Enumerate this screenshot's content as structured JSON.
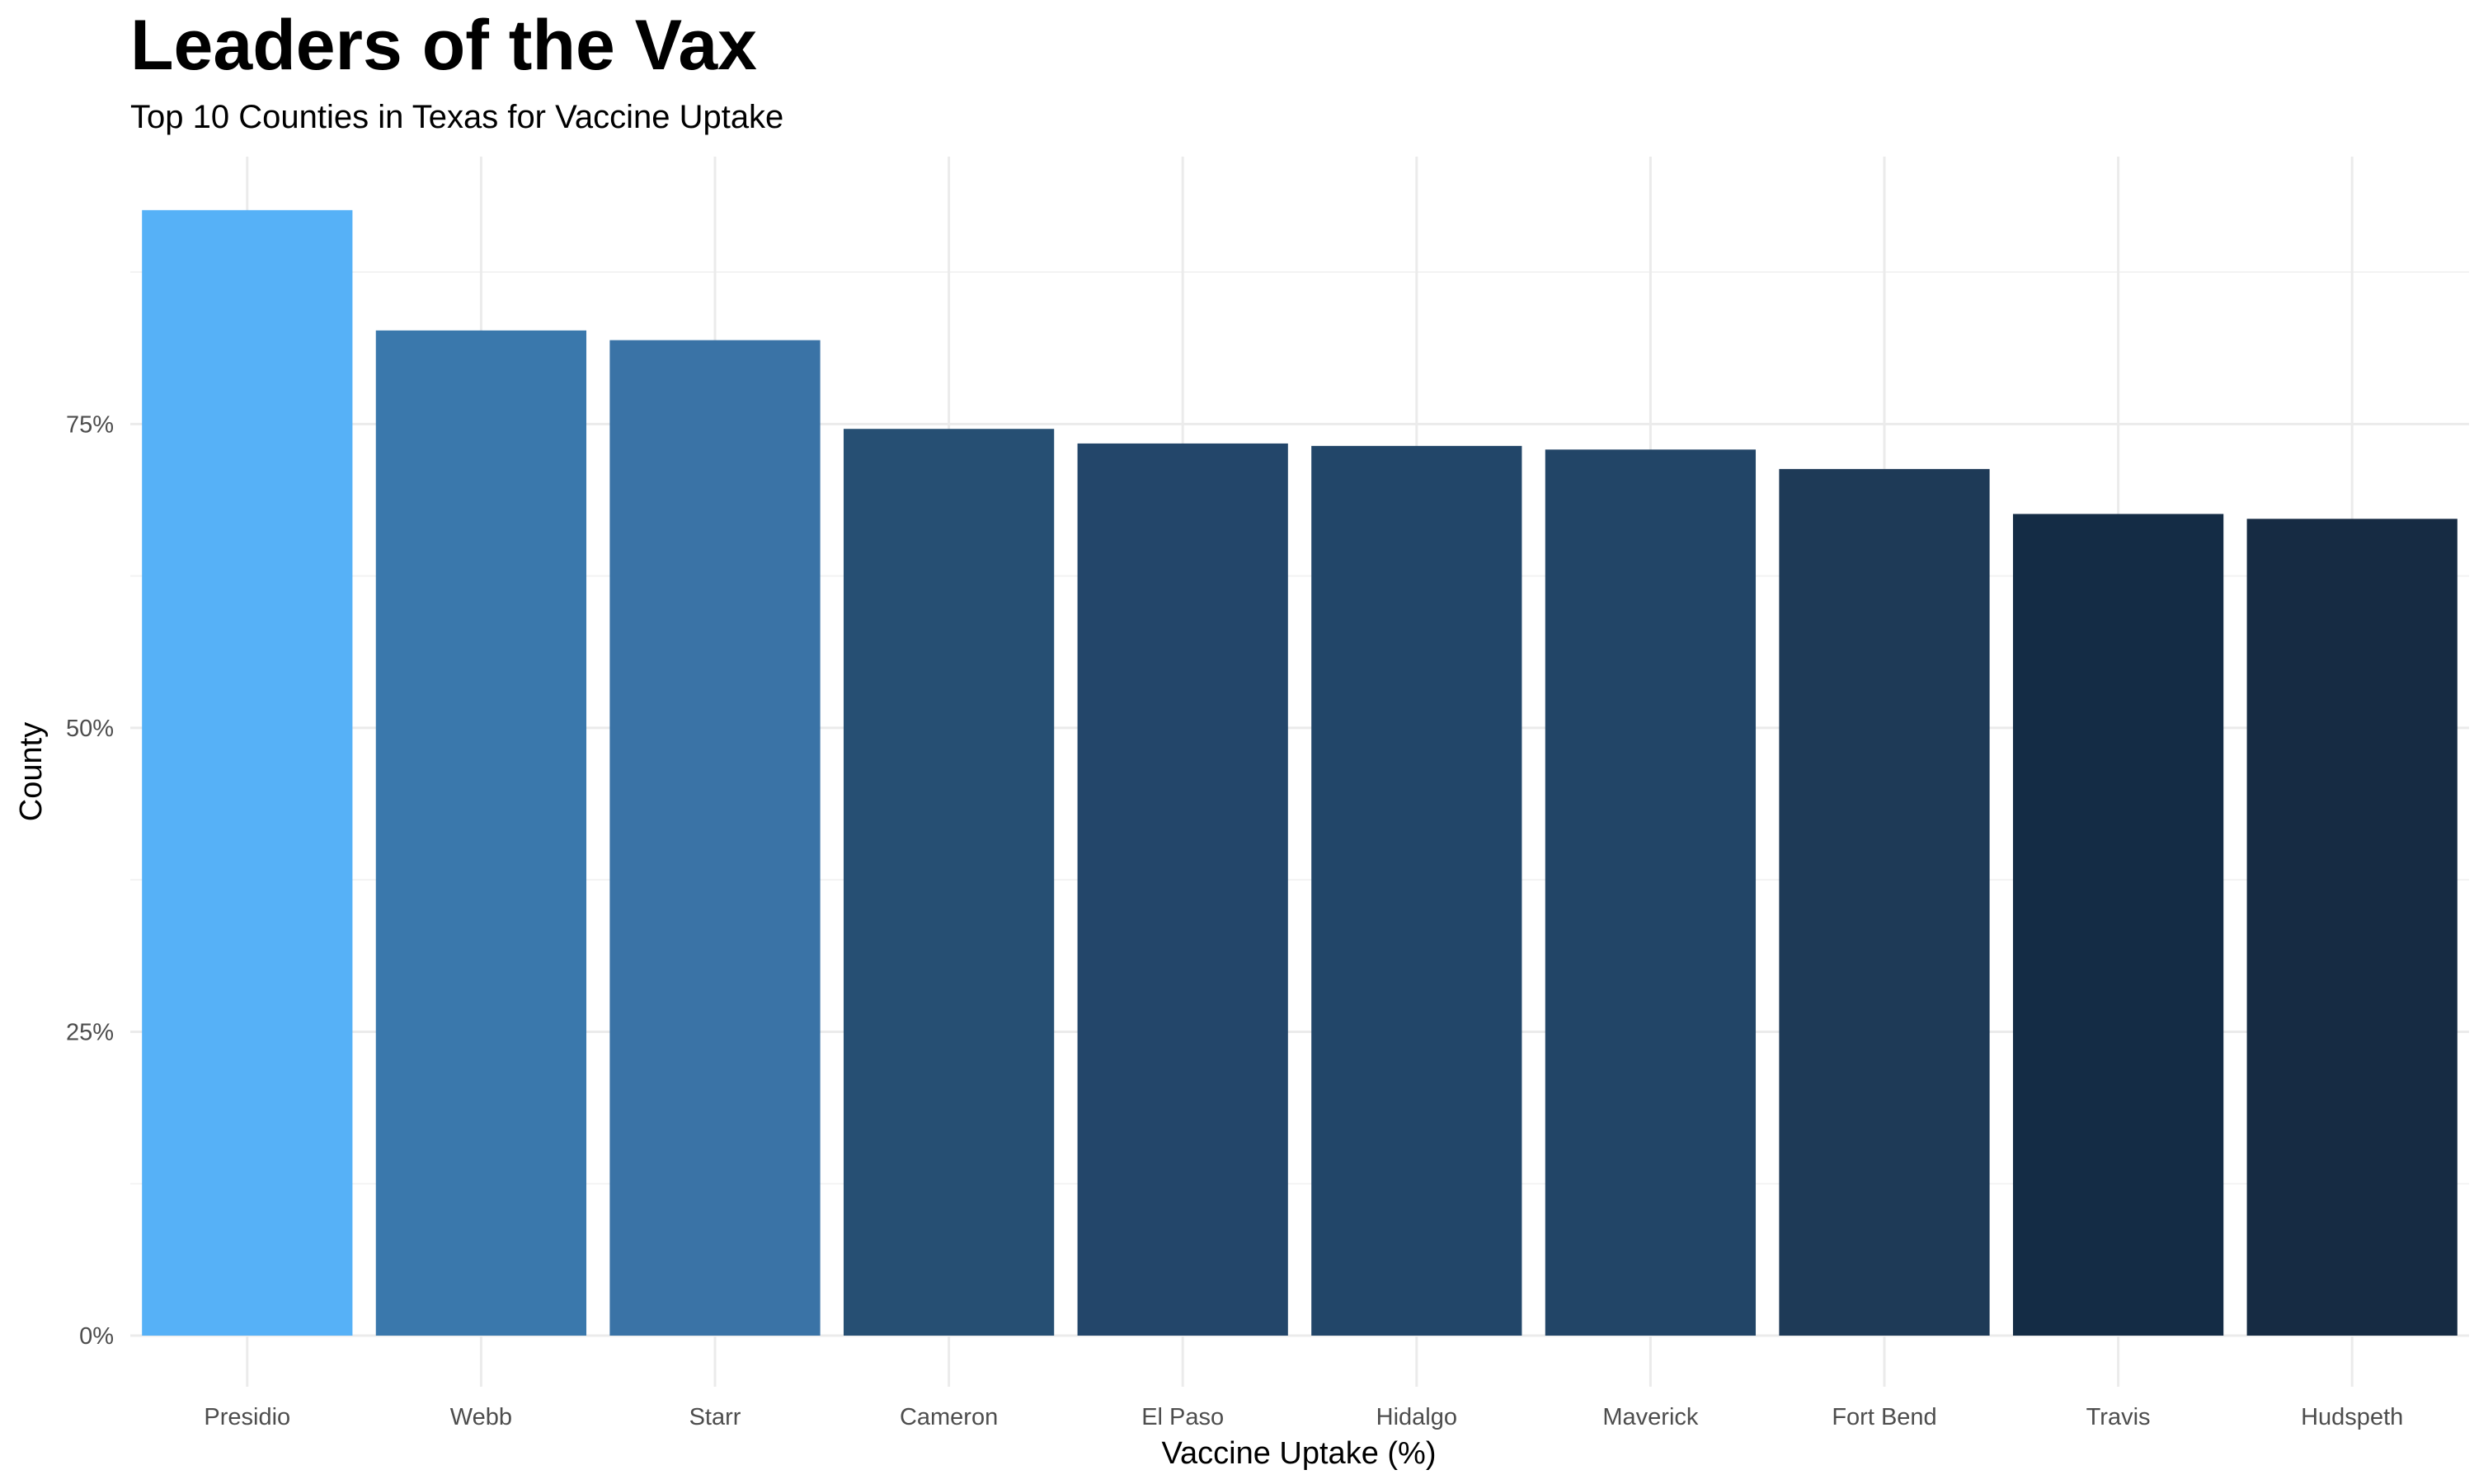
{
  "chart_data": {
    "type": "bar",
    "title": "Leaders of the Vax",
    "subtitle": "Top 10 Counties in Texas for Vaccine Uptake",
    "xlabel": "Vaccine Uptake (%)",
    "ylabel": "County",
    "categories": [
      "Presidio",
      "Webb",
      "Starr",
      "Cameron",
      "El Paso",
      "Hidalgo",
      "Maverick",
      "Fort Bend",
      "Travis",
      "Hudspeth"
    ],
    "values": [
      92.6,
      82.7,
      81.9,
      74.6,
      73.4,
      73.2,
      72.9,
      71.3,
      67.6,
      67.2
    ],
    "colors": [
      "#56b1f7",
      "#3a78ac",
      "#3a73a6",
      "#264f73",
      "#23466a",
      "#224669",
      "#224567",
      "#1e3a57",
      "#142c45",
      "#162b43"
    ],
    "ylim": [
      0,
      97
    ],
    "yticks": [
      "0%",
      "25%",
      "50%",
      "75%"
    ],
    "ytick_values": [
      0,
      25,
      50,
      75
    ],
    "grid": true,
    "legend": "none"
  }
}
